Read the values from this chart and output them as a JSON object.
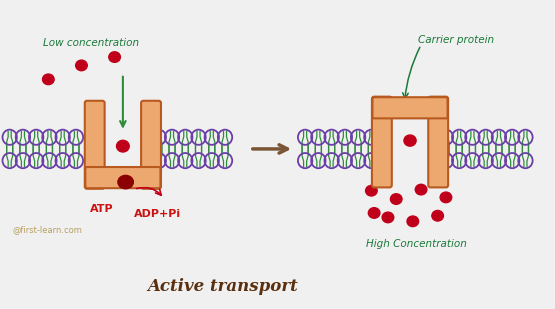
{
  "bg_color": "#f0f0f0",
  "membrane_color": "#2e8b3a",
  "phospholipid_head_color": "#6a3da8",
  "protein_color": "#e8874a",
  "protein_face_color": "#eda870",
  "protein_edge_color": "#b85a20",
  "molecule_color": "#c0001a",
  "text_low_conc": "Low concentration",
  "text_high_conc": "High Concentration",
  "text_carrier": "Carrier protein",
  "text_atp": "ATP",
  "text_adp": "ADP+Pi",
  "text_title": "Active transport",
  "text_watermark": "@first-learn.com",
  "arrow_color": "#7a5535",
  "title_color": "#5a3010",
  "label_color": "#1a7a3a",
  "atp_label_color": "#cc1111"
}
